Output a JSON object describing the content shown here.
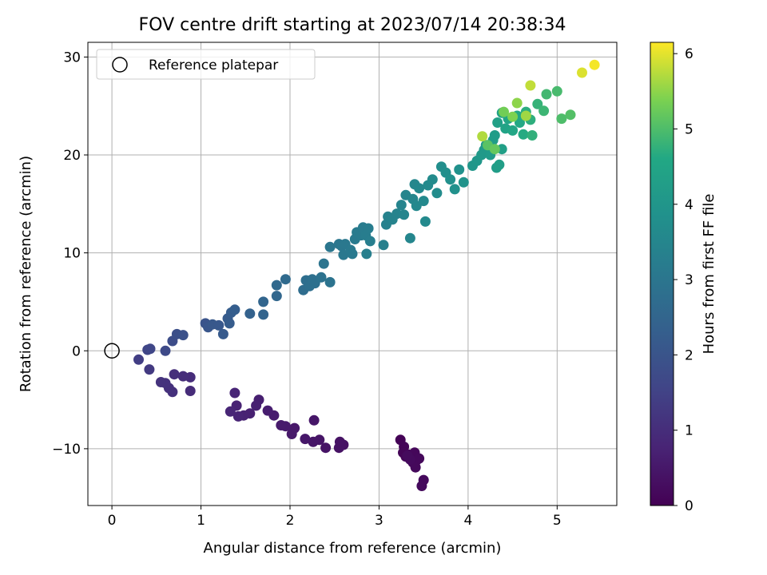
{
  "chart_data": {
    "type": "scatter",
    "title": "FOV centre drift starting at 2023/07/14 20:38:34",
    "xlabel": "Angular distance from reference (arcmin)",
    "ylabel": "Rotation from reference (arcmin)",
    "xlim": [
      -0.27,
      5.67
    ],
    "ylim": [
      -15.8,
      31.5
    ],
    "xticks": [
      0,
      1,
      2,
      3,
      4,
      5
    ],
    "yticks": [
      -10,
      0,
      10,
      20,
      30
    ],
    "grid": true,
    "legend": {
      "position": "top-left",
      "label": "Reference platepar"
    },
    "reference_point": {
      "x": 0,
      "y": 0
    },
    "colorbar": {
      "label": "Hours from first FF file",
      "range": [
        0,
        6.15
      ],
      "ticks": [
        0,
        1,
        2,
        3,
        4,
        5,
        6
      ],
      "colormap": "viridis"
    },
    "points": [
      [
        3.24,
        -9.1,
        0.05
      ],
      [
        3.28,
        -9.8,
        0.07
      ],
      [
        3.27,
        -10.4,
        0.08
      ],
      [
        3.3,
        -10.8,
        0.1
      ],
      [
        3.33,
        -10.6,
        0.11
      ],
      [
        3.36,
        -11.0,
        0.12
      ],
      [
        3.4,
        -10.4,
        0.13
      ],
      [
        3.38,
        -11.4,
        0.14
      ],
      [
        3.42,
        -11.2,
        0.15
      ],
      [
        3.45,
        -11.0,
        0.16
      ],
      [
        3.41,
        -11.9,
        0.17
      ],
      [
        3.5,
        -13.2,
        0.18
      ],
      [
        3.48,
        -13.8,
        0.19
      ],
      [
        3.35,
        -11.1,
        0.2
      ],
      [
        3.32,
        -10.7,
        0.21
      ],
      [
        2.6,
        -9.6,
        0.35
      ],
      [
        2.55,
        -9.9,
        0.37
      ],
      [
        2.56,
        -9.3,
        0.38
      ],
      [
        2.4,
        -9.9,
        0.4
      ],
      [
        2.33,
        -9.1,
        0.42
      ],
      [
        2.26,
        -9.3,
        0.44
      ],
      [
        2.27,
        -7.1,
        0.46
      ],
      [
        2.17,
        -9.0,
        0.48
      ],
      [
        2.05,
        -7.9,
        0.5
      ],
      [
        2.02,
        -8.5,
        0.52
      ],
      [
        1.95,
        -7.7,
        0.55
      ],
      [
        1.9,
        -7.6,
        0.57
      ],
      [
        1.82,
        -6.6,
        0.6
      ],
      [
        1.75,
        -6.1,
        0.62
      ],
      [
        1.65,
        -5.0,
        0.65
      ],
      [
        1.62,
        -5.6,
        0.67
      ],
      [
        1.55,
        -6.4,
        0.7
      ],
      [
        1.48,
        -6.6,
        0.72
      ],
      [
        1.4,
        -5.6,
        0.75
      ],
      [
        1.42,
        -6.7,
        0.77
      ],
      [
        1.38,
        -4.3,
        0.8
      ],
      [
        1.33,
        -6.2,
        0.82
      ],
      [
        0.88,
        -4.1,
        0.95
      ],
      [
        0.88,
        -2.7,
        0.97
      ],
      [
        0.8,
        -2.6,
        1.0
      ],
      [
        0.7,
        -2.4,
        1.03
      ],
      [
        0.68,
        -4.2,
        1.05
      ],
      [
        0.64,
        -3.8,
        1.07
      ],
      [
        0.6,
        -3.3,
        1.1
      ],
      [
        0.55,
        -3.2,
        1.12
      ],
      [
        0.42,
        -1.9,
        1.3
      ],
      [
        0.3,
        -0.9,
        1.4
      ],
      [
        0.4,
        0.1,
        1.6
      ],
      [
        0.43,
        0.2,
        1.62
      ],
      [
        0.6,
        0.0,
        1.7
      ],
      [
        0.68,
        1.0,
        1.8
      ],
      [
        0.73,
        1.7,
        1.85
      ],
      [
        0.8,
        1.6,
        1.9
      ],
      [
        1.05,
        2.8,
        2.0
      ],
      [
        1.08,
        2.4,
        2.05
      ],
      [
        1.13,
        2.7,
        2.1
      ],
      [
        1.2,
        2.6,
        2.12
      ],
      [
        1.25,
        1.7,
        2.15
      ],
      [
        1.3,
        3.3,
        2.2
      ],
      [
        1.32,
        2.8,
        2.22
      ],
      [
        1.34,
        3.9,
        2.25
      ],
      [
        1.38,
        4.2,
        2.28
      ],
      [
        1.55,
        3.8,
        2.4
      ],
      [
        1.7,
        3.7,
        2.45
      ],
      [
        1.7,
        5.0,
        2.5
      ],
      [
        1.85,
        5.6,
        2.55
      ],
      [
        1.85,
        6.7,
        2.6
      ],
      [
        1.95,
        7.3,
        2.65
      ],
      [
        2.15,
        6.2,
        2.75
      ],
      [
        2.18,
        7.2,
        2.78
      ],
      [
        2.22,
        6.6,
        2.8
      ],
      [
        2.25,
        7.3,
        2.82
      ],
      [
        2.28,
        6.9,
        2.84
      ],
      [
        2.35,
        7.5,
        2.88
      ],
      [
        2.45,
        7.0,
        2.92
      ],
      [
        2.38,
        8.9,
        2.95
      ],
      [
        2.45,
        10.6,
        3.0
      ],
      [
        2.55,
        10.9,
        3.02
      ],
      [
        2.58,
        10.7,
        3.04
      ],
      [
        2.62,
        10.9,
        3.06
      ],
      [
        2.6,
        9.8,
        3.08
      ],
      [
        2.68,
        10.3,
        3.1
      ],
      [
        2.7,
        9.9,
        3.12
      ],
      [
        2.73,
        11.4,
        3.14
      ],
      [
        2.75,
        12.1,
        3.16
      ],
      [
        2.8,
        11.8,
        3.18
      ],
      [
        2.82,
        12.6,
        3.2
      ],
      [
        2.85,
        11.8,
        3.22
      ],
      [
        2.88,
        12.5,
        3.24
      ],
      [
        2.9,
        11.2,
        3.26
      ],
      [
        2.86,
        9.9,
        3.28
      ],
      [
        3.05,
        10.8,
        3.32
      ],
      [
        3.08,
        12.9,
        3.36
      ],
      [
        3.1,
        13.7,
        3.38
      ],
      [
        3.15,
        13.4,
        3.4
      ],
      [
        3.2,
        14.0,
        3.42
      ],
      [
        3.25,
        14.9,
        3.44
      ],
      [
        3.28,
        13.9,
        3.46
      ],
      [
        3.3,
        15.9,
        3.48
      ],
      [
        3.35,
        11.5,
        3.5
      ],
      [
        3.38,
        15.5,
        3.52
      ],
      [
        3.4,
        17.0,
        3.54
      ],
      [
        3.42,
        14.8,
        3.56
      ],
      [
        3.45,
        16.6,
        3.58
      ],
      [
        3.5,
        15.3,
        3.6
      ],
      [
        3.52,
        13.2,
        3.62
      ],
      [
        3.55,
        16.9,
        3.64
      ],
      [
        3.6,
        17.5,
        3.66
      ],
      [
        3.65,
        16.1,
        3.7
      ],
      [
        3.7,
        18.8,
        3.74
      ],
      [
        3.75,
        18.2,
        3.77
      ],
      [
        3.8,
        17.5,
        3.8
      ],
      [
        3.85,
        16.5,
        3.84
      ],
      [
        3.9,
        18.5,
        3.86
      ],
      [
        3.95,
        17.2,
        3.9
      ],
      [
        4.05,
        18.9,
        4.0
      ],
      [
        4.1,
        19.4,
        4.05
      ],
      [
        4.15,
        20.0,
        4.1
      ],
      [
        4.18,
        20.5,
        4.12
      ],
      [
        4.2,
        21.0,
        4.15
      ],
      [
        4.25,
        20.0,
        4.18
      ],
      [
        4.28,
        21.5,
        4.2
      ],
      [
        4.3,
        22.0,
        4.22
      ],
      [
        4.32,
        18.7,
        4.25
      ],
      [
        4.35,
        19.0,
        4.28
      ],
      [
        4.38,
        20.6,
        4.3
      ],
      [
        4.33,
        23.3,
        4.35
      ],
      [
        4.38,
        24.3,
        4.4
      ],
      [
        4.42,
        22.7,
        4.45
      ],
      [
        4.45,
        23.7,
        4.5
      ],
      [
        4.5,
        22.5,
        4.55
      ],
      [
        4.55,
        24.0,
        4.6
      ],
      [
        4.58,
        23.3,
        4.62
      ],
      [
        4.62,
        22.1,
        4.65
      ],
      [
        4.65,
        24.4,
        4.7
      ],
      [
        4.7,
        23.6,
        4.72
      ],
      [
        4.72,
        22.0,
        4.75
      ],
      [
        4.78,
        25.2,
        4.8
      ],
      [
        4.85,
        24.5,
        4.85
      ],
      [
        4.88,
        26.2,
        4.9
      ],
      [
        5.0,
        26.5,
        4.95
      ],
      [
        5.05,
        23.7,
        5.0
      ],
      [
        5.15,
        24.1,
        5.05
      ],
      [
        4.22,
        21.0,
        5.1
      ],
      [
        4.3,
        20.6,
        5.2
      ],
      [
        4.4,
        24.4,
        5.3
      ],
      [
        4.5,
        23.9,
        5.4
      ],
      [
        4.55,
        25.3,
        5.5
      ],
      [
        4.65,
        24.0,
        5.6
      ],
      [
        4.16,
        21.9,
        5.7
      ],
      [
        4.7,
        27.1,
        5.8
      ],
      [
        5.28,
        28.4,
        5.95
      ],
      [
        5.42,
        29.2,
        6.1
      ]
    ]
  }
}
